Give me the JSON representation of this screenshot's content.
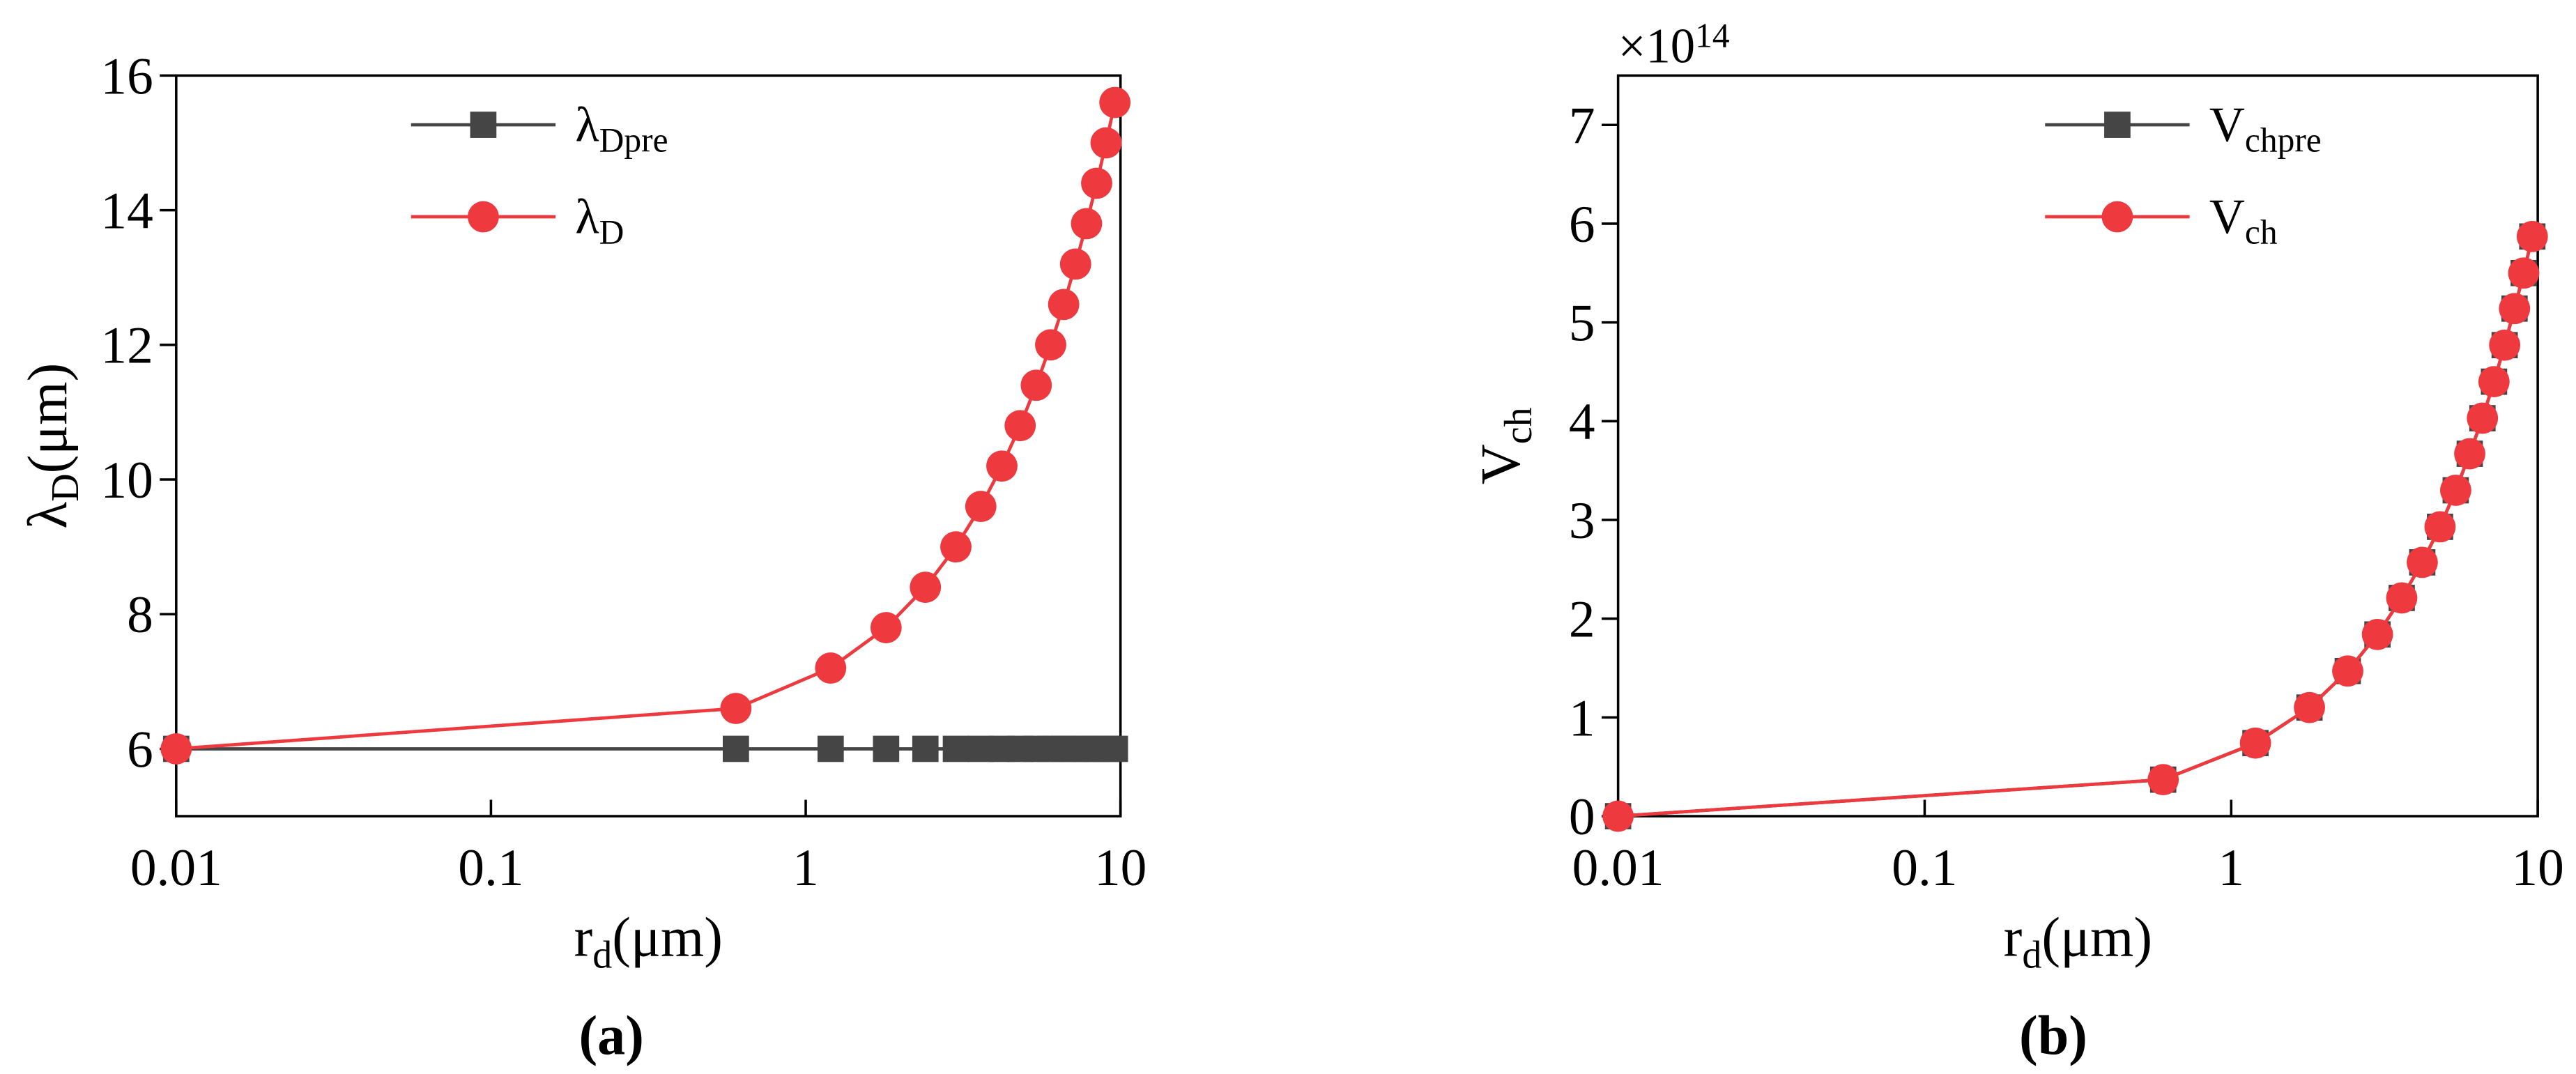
{
  "chart_data": [
    {
      "type": "line",
      "caption": "(a)",
      "xlabel": "r",
      "xlabel_sub": "d",
      "xlabel_unit": "(μm)",
      "ylabel": "λ",
      "ylabel_sub": "D",
      "ylabel_unit": "(μm)",
      "x": [
        0.01,
        0.6,
        1.2,
        1.8,
        2.4,
        3.0,
        3.6,
        4.2,
        4.8,
        5.4,
        6.0,
        6.6,
        7.2,
        7.8,
        8.4,
        9.0,
        9.6
      ],
      "series": [
        {
          "name": "λ",
          "name_sub": "Dpre",
          "color": "#454545",
          "marker": "square",
          "values": [
            6,
            6,
            6,
            6,
            6,
            6,
            6,
            6,
            6,
            6,
            6,
            6,
            6,
            6,
            6,
            6,
            6
          ]
        },
        {
          "name": "λ",
          "name_sub": "D",
          "color": "#ee3a3f",
          "marker": "circle",
          "values": [
            6.0,
            6.6,
            7.2,
            7.8,
            8.4,
            9.0,
            9.6,
            10.2,
            10.8,
            11.4,
            12.0,
            12.6,
            13.2,
            13.8,
            14.4,
            15.0,
            15.6
          ]
        }
      ],
      "xscale": "log",
      "xlim": [
        0.01,
        10
      ],
      "xticks": [
        0.01,
        0.1,
        1,
        10
      ],
      "ylim": [
        5,
        16
      ],
      "yticks": [
        6,
        8,
        10,
        12,
        14,
        16
      ],
      "legend": "upper center"
    },
    {
      "type": "line",
      "caption": "(b)",
      "xlabel": "r",
      "xlabel_sub": "d",
      "xlabel_unit": "(μm)",
      "ylabel": "V",
      "ylabel_sub": "ch",
      "y_multiplier": "×10",
      "y_multiplier_exp": "14",
      "x": [
        0.01,
        0.6,
        1.2,
        1.8,
        2.4,
        3.0,
        3.6,
        4.2,
        4.8,
        5.4,
        6.0,
        6.6,
        7.2,
        7.8,
        8.4,
        9.0,
        9.6
      ],
      "series": [
        {
          "name": "V",
          "name_sub": "chpre",
          "color": "#454545",
          "marker": "square",
          "values": [
            0.0,
            0.37,
            0.74,
            1.1,
            1.47,
            1.84,
            2.21,
            2.57,
            2.93,
            3.3,
            3.67,
            4.03,
            4.4,
            4.77,
            5.14,
            5.5,
            5.87
          ]
        },
        {
          "name": "V",
          "name_sub": "ch",
          "color": "#ee3a3f",
          "marker": "circle",
          "values": [
            0.0,
            0.37,
            0.74,
            1.1,
            1.47,
            1.84,
            2.21,
            2.57,
            2.93,
            3.3,
            3.67,
            4.03,
            4.4,
            4.77,
            5.14,
            5.5,
            5.87
          ]
        }
      ],
      "xscale": "log",
      "xlim": [
        0.01,
        10
      ],
      "xticks": [
        0.01,
        0.1,
        1,
        10
      ],
      "ylim": [
        0,
        7.5
      ],
      "yticks": [
        0,
        1,
        2,
        3,
        4,
        5,
        6,
        7
      ],
      "legend": "upper right"
    }
  ]
}
